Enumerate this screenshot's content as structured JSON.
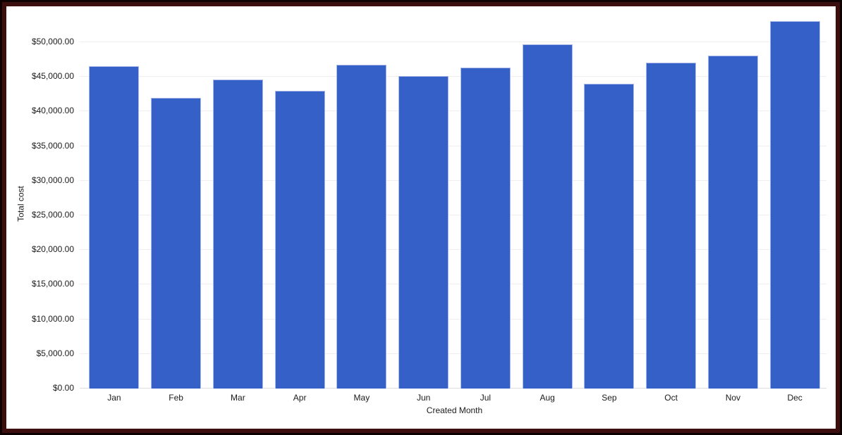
{
  "frame": {
    "outer_border_color": "#0d0101",
    "inner_border_color": "#3c0e0e",
    "canvas_background": "#ffffff"
  },
  "chart_data": {
    "type": "bar",
    "title": "",
    "categories": [
      "Jan",
      "Feb",
      "Mar",
      "Apr",
      "May",
      "Jun",
      "Jul",
      "Aug",
      "Sep",
      "Oct",
      "Nov",
      "Dec"
    ],
    "values": [
      46500,
      42000,
      44600,
      43000,
      46800,
      45100,
      46300,
      49700,
      44000,
      47100,
      48100,
      53000
    ],
    "xlabel": "Created Month",
    "ylabel": "Total cost",
    "ylim": [
      0,
      55000
    ],
    "ytick_interval": 5000,
    "y_tick_labels": [
      "$0.00",
      "$5,000.00",
      "$10,000.00",
      "$15,000.00",
      "$20,000.00",
      "$25,000.00",
      "$30,000.00",
      "$35,000.00",
      "$40,000.00",
      "$45,000.00",
      "$50,000.00"
    ],
    "grid": true,
    "legend": "none",
    "bar_color": "#3560c8",
    "bar_stroke_color": "#aab9e8",
    "gridline_color": "#eeeeee",
    "baseline_color": "#dcdcdc",
    "text_color": "#1b1b1b"
  }
}
